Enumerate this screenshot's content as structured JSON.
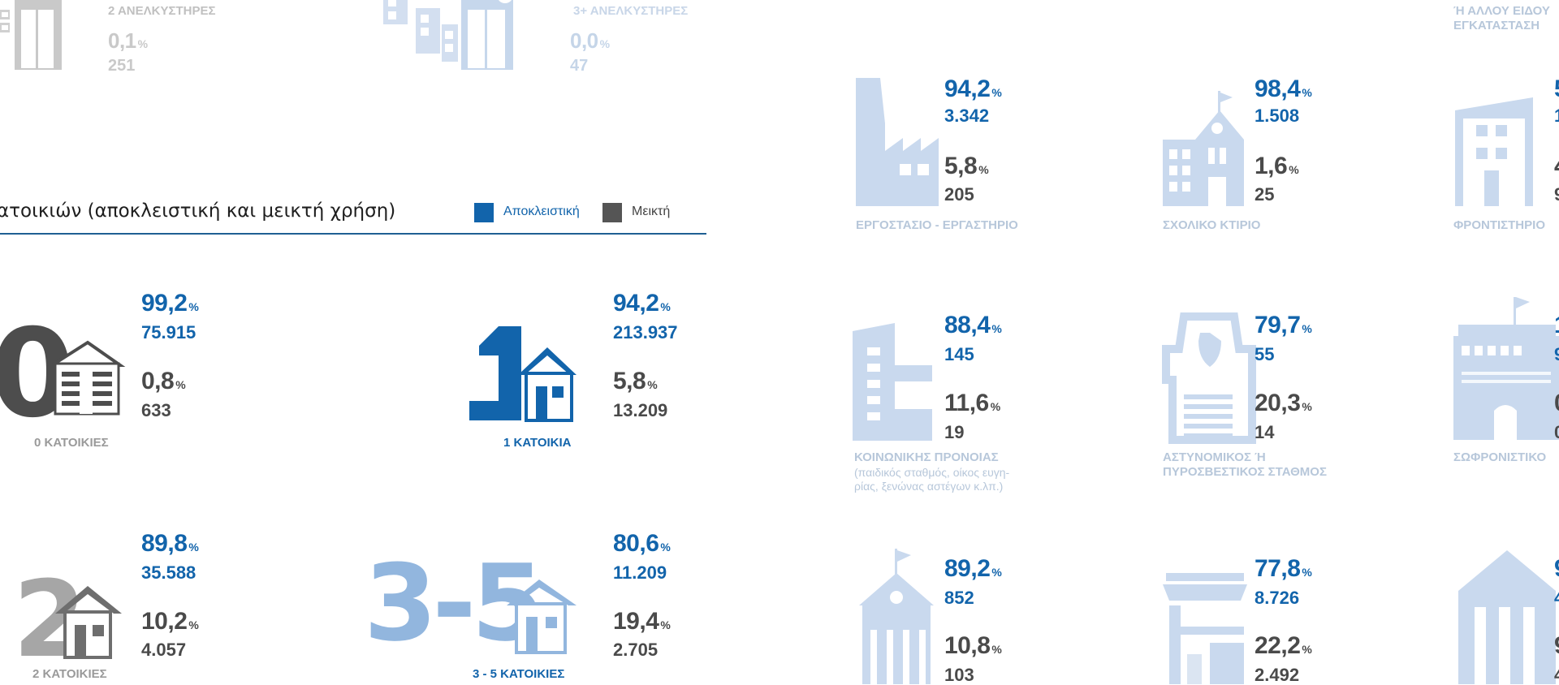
{
  "elevators": [
    {
      "label": "2 ΑΝΕΛΚΥΣΤΗΡΕΣ",
      "pct": "0,1",
      "count": "251"
    },
    {
      "label": "3+ ΑΝΕΛΚΥΣΤΗΡΕΣ",
      "pct": "0,0",
      "count": "47"
    }
  ],
  "pct_symbol": "%",
  "section": {
    "title": "ατοικιών (αποκλειστική και μεικτή χρήση)",
    "legend": [
      {
        "label": "Αποκλειστική",
        "color": "#1264ab"
      },
      {
        "label": "Μεικτή",
        "color": "#555555"
      }
    ]
  },
  "dwellings": [
    {
      "label": "0 ΚΑΤΟΙΚΙΕΣ",
      "glyph": "0",
      "exclusive_pct": "99,2",
      "exclusive_count": "75.915",
      "mixed_pct": "0,8",
      "mixed_count": "633"
    },
    {
      "label": "1 ΚΑΤΟΙΚΙΑ",
      "glyph": "1",
      "exclusive_pct": "94,2",
      "exclusive_count": "213.937",
      "mixed_pct": "5,8",
      "mixed_count": "13.209"
    },
    {
      "label": "2 ΚΑΤΟΙΚΙΕΣ",
      "glyph": "2",
      "exclusive_pct": "89,8",
      "exclusive_count": "35.588",
      "mixed_pct": "10,2",
      "mixed_count": "4.057"
    },
    {
      "label": "3 - 5 ΚΑΤΟΙΚΙΕΣ",
      "glyph": "3-5",
      "exclusive_pct": "80,6",
      "exclusive_count": "11.209",
      "mixed_pct": "19,4",
      "mixed_count": "2.705"
    }
  ],
  "building_types": [
    {
      "label": "ΕΡΓΟΣΤΑΣΙΟ - ΕΡΓΑΣΤΗΡΙΟ",
      "sub": "",
      "exclusive_pct": "94,2",
      "exclusive_count": "3.342",
      "mixed_pct": "5,8",
      "mixed_count": "205",
      "icon": "factory-icon"
    },
    {
      "label": "ΣΧΟΛΙΚΟ ΚΤΙΡΙΟ",
      "sub": "",
      "exclusive_pct": "98,4",
      "exclusive_count": "1.508",
      "mixed_pct": "1,6",
      "mixed_count": "25",
      "icon": "school-icon"
    },
    {
      "label": "ΚΟΙΝΩΝΙΚΗΣ ΠΡΟΝΟΙΑΣ",
      "sub": "(παιδικός σταθμός, οίκος ευγη-\nρίας, ξενώνας αστέγων κ.λπ.)",
      "exclusive_pct": "88,4",
      "exclusive_count": "145",
      "mixed_pct": "11,6",
      "mixed_count": "19",
      "icon": "welfare-building-icon"
    },
    {
      "label": "ΑΣΤΥΝΟΜΙΚΟΣ Ή\nΠΥΡΟΣΒΕΣΤΙΚΟΣ ΣΤΑΘΜΟΣ",
      "sub": "",
      "exclusive_pct": "79,7",
      "exclusive_count": "55",
      "mixed_pct": "20,3",
      "mixed_count": "14",
      "icon": "police-station-icon"
    },
    {
      "label": "",
      "sub": "",
      "exclusive_pct": "89,2",
      "exclusive_count": "852",
      "mixed_pct": "10,8",
      "mixed_count": "103",
      "icon": "church-icon"
    },
    {
      "label": "",
      "sub": "",
      "exclusive_pct": "77,8",
      "exclusive_count": "8.726",
      "mixed_pct": "22,2",
      "mixed_count": "2.492",
      "icon": "shop-icon"
    }
  ],
  "right_column": [
    {
      "label": "Ή ΑΛΛΟΥ ΕΙΔΟΥ\nΕΓΚΑΤΑΣΤΑΣΗ",
      "exclusive_pct": "5",
      "exclusive_count": "1",
      "mixed_pct": "4",
      "mixed_count": "9"
    },
    {
      "label": "ΦΡΟΝΤΙΣΤΗΡΙΟ",
      "exclusive_pct": "",
      "exclusive_count": "",
      "mixed_pct": "",
      "mixed_count": ""
    },
    {
      "label": "ΣΩΦΡΟΝΙΣΤΙΚΟ",
      "exclusive_pct": "1",
      "exclusive_count": "9",
      "mixed_pct": "0",
      "mixed_count": "0"
    },
    {
      "label": "",
      "exclusive_pct": "9",
      "exclusive_count": "4",
      "mixed_pct": "9",
      "mixed_count": "4"
    }
  ]
}
